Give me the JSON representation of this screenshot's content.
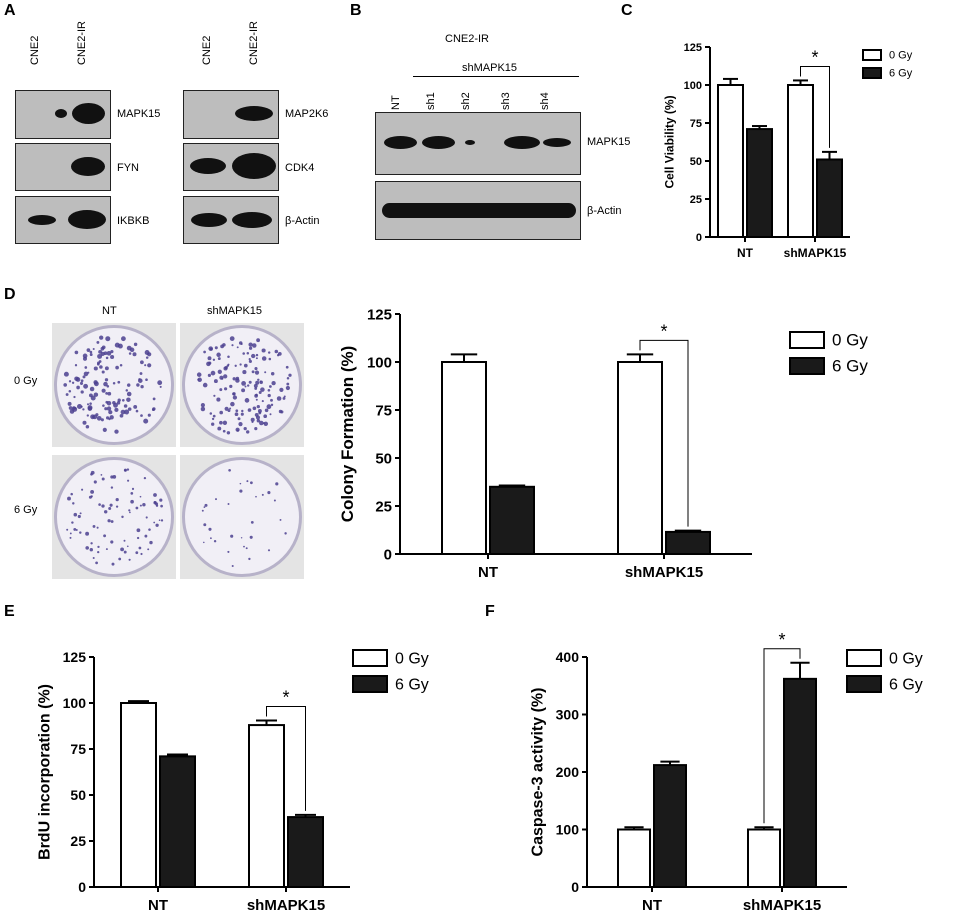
{
  "panel_A": {
    "letter": "A",
    "left_columns": [
      "CNE2",
      "CNE2-IR"
    ],
    "right_columns": [
      "CNE2",
      "CNE2-IR"
    ],
    "left_rows": [
      "MAPK15",
      "FYN",
      "IKBKB"
    ],
    "right_rows": [
      "MAP2K6",
      "CDK4",
      "β-Actin"
    ]
  },
  "panel_B": {
    "letter": "B",
    "cell_line": "CNE2-IR",
    "group_label": "shMAPK15",
    "lanes": [
      "NT",
      "sh1",
      "sh2",
      "sh3",
      "sh4"
    ],
    "rows": [
      "MAPK15",
      "β-Actin"
    ]
  },
  "panel_D": {
    "letter": "D",
    "col_labels": [
      "NT",
      "shMAPK15"
    ],
    "row_labels": [
      "0 Gy",
      "6 Gy"
    ]
  },
  "chart_data": [
    {
      "panel": "C",
      "type": "bar",
      "ylabel": "Cell Viability (%)",
      "categories": [
        "NT",
        "shMAPK15"
      ],
      "yticks": [
        "0",
        "25",
        "50",
        "75",
        "100",
        "125"
      ],
      "ylim": [
        0,
        125
      ],
      "legend_position": "top-right",
      "series": [
        {
          "name": "0 Gy",
          "values": [
            100,
            100
          ],
          "errors": [
            4,
            3
          ],
          "color": "#ffffff"
        },
        {
          "name": "6 Gy",
          "values": [
            71,
            51
          ],
          "errors": [
            2,
            5
          ],
          "color": "#1a1a1a"
        }
      ],
      "significance": {
        "category": "shMAPK15",
        "label": "*"
      }
    },
    {
      "panel": "D",
      "type": "bar",
      "ylabel": "Colony Formation (%)",
      "categories": [
        "NT",
        "shMAPK15"
      ],
      "yticks": [
        "0",
        "25",
        "50",
        "75",
        "100",
        "125"
      ],
      "ylim": [
        0,
        125
      ],
      "legend_position": "top-right",
      "series": [
        {
          "name": "0 Gy",
          "values": [
            100,
            100
          ],
          "errors": [
            4,
            4
          ],
          "color": "#ffffff"
        },
        {
          "name": "6 Gy",
          "values": [
            35,
            11.5
          ],
          "errors": [
            0.7,
            0.7
          ],
          "color": "#1a1a1a"
        }
      ],
      "significance": {
        "category": "shMAPK15",
        "label": "*"
      }
    },
    {
      "panel": "E",
      "type": "bar",
      "ylabel": "BrdU incorporation (%)",
      "categories": [
        "NT",
        "shMAPK15"
      ],
      "yticks": [
        "0",
        "25",
        "50",
        "75",
        "100",
        "125"
      ],
      "ylim": [
        0,
        125
      ],
      "legend_position": "top-right",
      "series": [
        {
          "name": "0 Gy",
          "values": [
            100,
            88
          ],
          "errors": [
            1,
            2.5
          ],
          "color": "#ffffff"
        },
        {
          "name": "6 Gy",
          "values": [
            71,
            38
          ],
          "errors": [
            1,
            1.2
          ],
          "color": "#1a1a1a"
        }
      ],
      "significance": {
        "category": "shMAPK15",
        "label": "*"
      }
    },
    {
      "panel": "F",
      "type": "bar",
      "ylabel": "Caspase-3 activity (%)",
      "categories": [
        "NT",
        "shMAPK15"
      ],
      "yticks": [
        "0",
        "100",
        "200",
        "300",
        "400"
      ],
      "ylim": [
        0,
        400
      ],
      "legend_position": "top-right",
      "series": [
        {
          "name": "0 Gy",
          "values": [
            100,
            100
          ],
          "errors": [
            4,
            4
          ],
          "color": "#ffffff"
        },
        {
          "name": "6 Gy",
          "values": [
            212,
            362
          ],
          "errors": [
            6,
            28
          ],
          "color": "#1a1a1a"
        }
      ],
      "significance": {
        "category": "shMAPK15",
        "label": "*"
      }
    }
  ]
}
